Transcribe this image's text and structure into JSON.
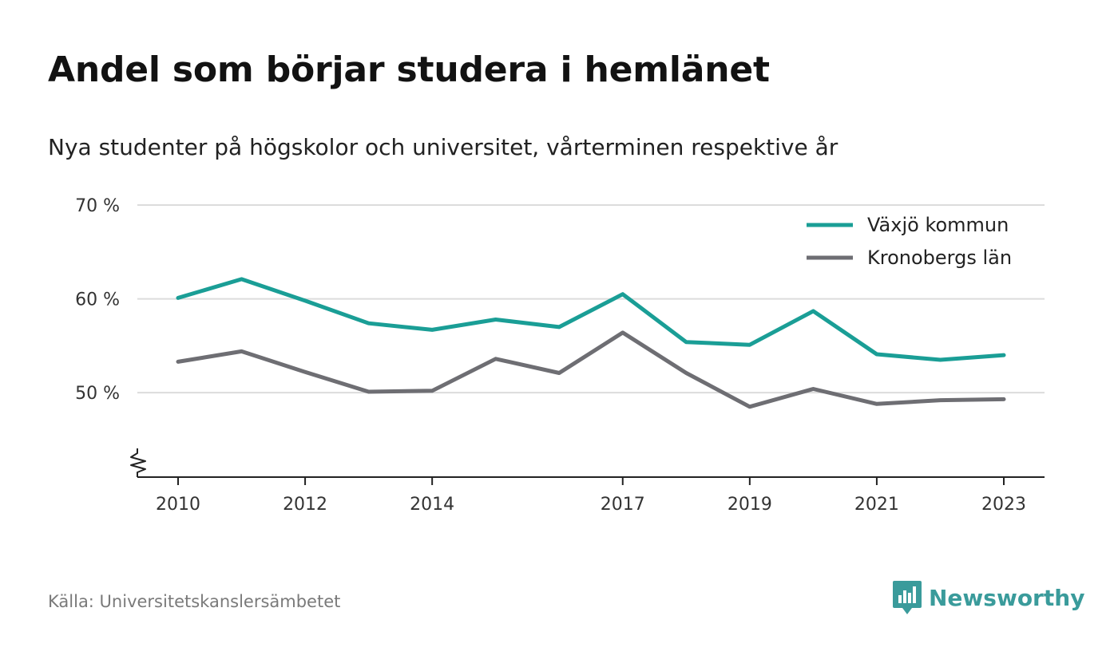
{
  "header": {
    "title": "Andel som börjar studera i hemlänet",
    "subtitle": "Nya studenter på högskolor och universitet, vårterminen respektive år"
  },
  "footer": {
    "source": "Källa: Universitetskanslersämbetet",
    "brand": "Newsworthy"
  },
  "colors": {
    "accent": "#1a9e96",
    "secondary": "#6e6e73",
    "brand": "#3a9b9b"
  },
  "chart_data": {
    "type": "line",
    "x": [
      2010,
      2011,
      2012,
      2013,
      2014,
      2015,
      2016,
      2017,
      2018,
      2019,
      2020,
      2021,
      2022,
      2023
    ],
    "x_tick_labels": [
      "2010",
      "2012",
      "2014",
      "2017",
      "2019",
      "2021",
      "2023"
    ],
    "y_ticks": [
      50,
      60,
      70
    ],
    "y_tick_labels": [
      "50 %",
      "60 %",
      "70 %"
    ],
    "ylim": [
      41,
      70
    ],
    "axis_break": true,
    "grid": true,
    "legend_position": "top-right",
    "series": [
      {
        "name": "Växjö kommun",
        "color": "#1a9e96",
        "values": [
          60.1,
          62.1,
          59.8,
          57.4,
          56.7,
          57.8,
          57.0,
          60.5,
          55.4,
          55.1,
          58.7,
          54.1,
          53.5,
          54.0
        ]
      },
      {
        "name": "Kronobergs län",
        "color": "#6e6e73",
        "values": [
          53.3,
          54.4,
          52.2,
          50.1,
          50.2,
          53.6,
          52.1,
          56.4,
          52.1,
          48.5,
          50.4,
          48.8,
          49.2,
          49.3
        ]
      }
    ]
  }
}
